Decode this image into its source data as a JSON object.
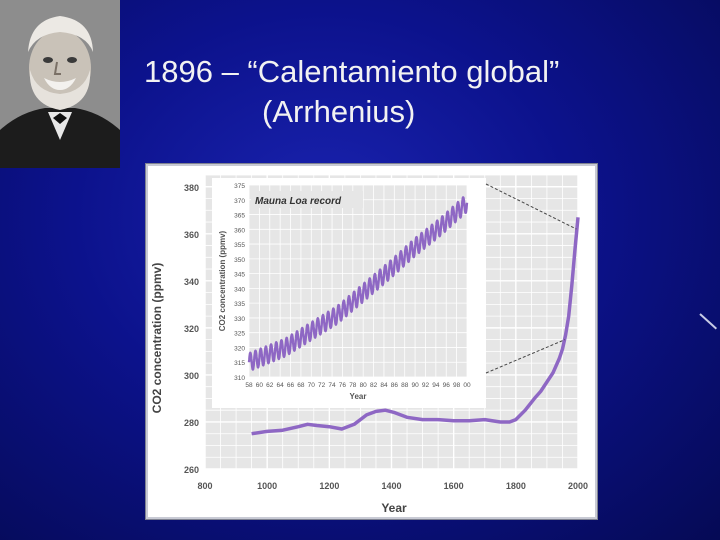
{
  "slide": {
    "title_line1": "1896 – “Calentamiento global”",
    "title_line2": "(Arrhenius)"
  },
  "portrait": {
    "icon": "portrait-photo-arrhenius"
  },
  "chart_data": [
    {
      "type": "line",
      "title": "",
      "xlabel": "Year",
      "ylabel": "CO2 concentration (ppmv)",
      "xlim": [
        800,
        2000
      ],
      "ylim": [
        260,
        385
      ],
      "x_ticks": [
        "800",
        "1000",
        "1200",
        "1400",
        "1600",
        "1800",
        "2000"
      ],
      "y_ticks": [
        "260",
        "280",
        "300",
        "320",
        "340",
        "360",
        "380"
      ],
      "series": [
        {
          "color": "#8e67c4",
          "x": [
            950,
            1000,
            1050,
            1100,
            1130,
            1160,
            1200,
            1240,
            1280,
            1320,
            1350,
            1380,
            1410,
            1450,
            1500,
            1550,
            1600,
            1650,
            1700,
            1750,
            1780,
            1800,
            1830,
            1860,
            1880,
            1900,
            1920,
            1940,
            1950,
            1960,
            1970,
            1980,
            1990,
            2000
          ],
          "y": [
            275,
            276,
            276.5,
            278,
            279,
            278.5,
            278,
            277,
            279,
            283,
            284.5,
            285,
            284,
            282,
            281,
            281,
            280.5,
            280.5,
            281,
            280,
            280,
            281,
            285,
            290,
            293,
            297,
            301,
            307,
            311,
            317,
            325,
            338,
            353,
            367
          ]
        }
      ]
    },
    {
      "type": "line",
      "title": "Mauna Loa record",
      "xlabel": "Year",
      "ylabel": "CO2 concentration (ppmv)",
      "xlim": [
        1958,
        2000
      ],
      "ylim": [
        310,
        375
      ],
      "x_ticks": [
        "58",
        "60",
        "62",
        "64",
        "66",
        "68",
        "70",
        "72",
        "74",
        "76",
        "78",
        "80",
        "82",
        "84",
        "86",
        "88",
        "90",
        "92",
        "94",
        "96",
        "98",
        "00"
      ],
      "y_ticks": [
        "310",
        "315",
        "320",
        "325",
        "330",
        "335",
        "340",
        "345",
        "350",
        "355",
        "360",
        "365",
        "370",
        "375"
      ],
      "trend": {
        "x": [
          1958,
          1965,
          1970,
          1975,
          1980,
          1985,
          1990,
          1995,
          2000
        ],
        "y": [
          315,
          320,
          325.5,
          331,
          338.5,
          346,
          354,
          361,
          369
        ]
      },
      "seasonal_amplitude": 3,
      "color": "#8e67c4"
    }
  ],
  "colors": {
    "line": "#8e67c4",
    "plot_bg": "#e6e6e6",
    "grid": "#ffffff",
    "frame": "#7f8290"
  }
}
